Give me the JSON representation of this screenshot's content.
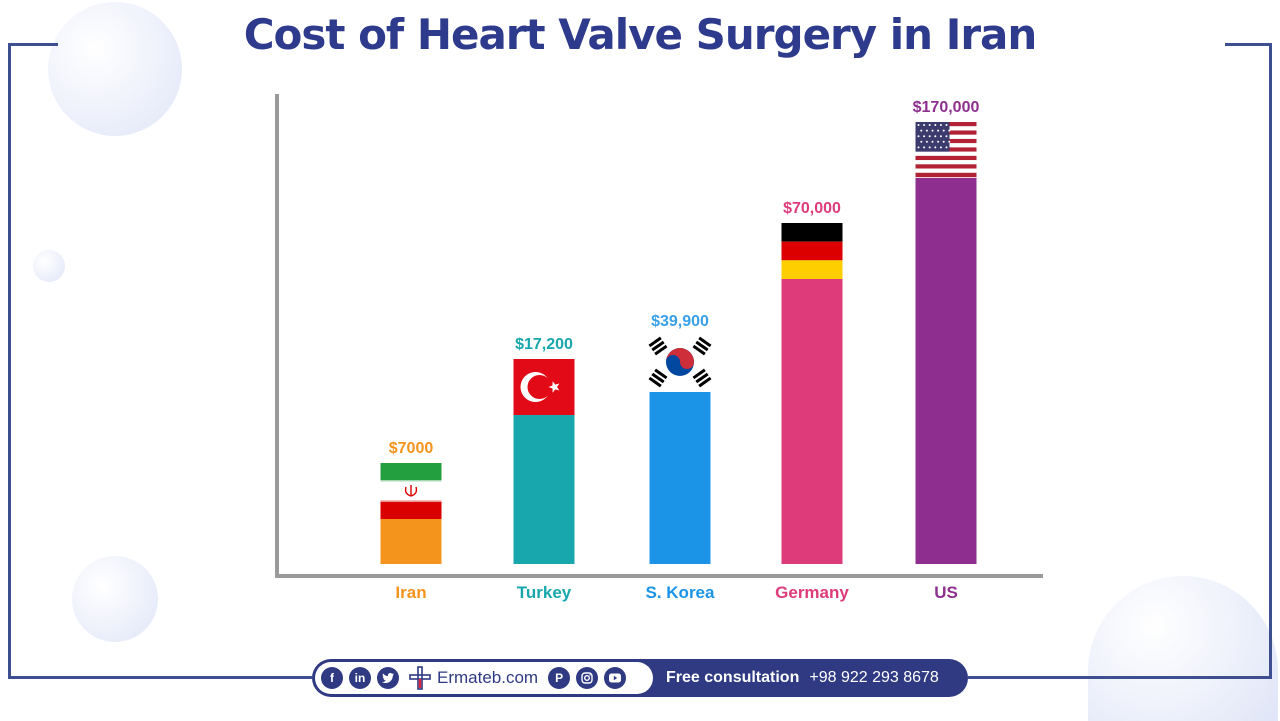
{
  "title": "Cost of Heart Valve Surgery in Iran",
  "chart_data": {
    "type": "bar",
    "categories": [
      "Iran",
      "Turkey",
      "S. Korea",
      "Germany",
      "US"
    ],
    "values": [
      7000,
      17200,
      39900,
      70000,
      170000
    ],
    "value_labels": [
      "$7000",
      "$17,200",
      "$39,900",
      "$70,000",
      "$170,000"
    ],
    "colors": [
      "#f5941d",
      "#17a7ad",
      "#1b94e8",
      "#dd3b7a",
      "#8e2f8f"
    ],
    "flags": [
      "iran-flag",
      "turkey-flag",
      "south-korea-flag",
      "germany-flag",
      "us-flag"
    ],
    "title": "Cost of Heart Valve Surgery in Iran",
    "xlabel": "",
    "ylabel": "",
    "grid": false,
    "legend": "none"
  },
  "footer": {
    "social_icons": [
      "facebook-icon",
      "linkedin-icon",
      "twitter-icon",
      "pinterest-icon",
      "instagram-icon",
      "youtube-icon"
    ],
    "site": "Ermateb.com",
    "cta": "Free consultation",
    "phone": "+98 922 293 8678"
  }
}
